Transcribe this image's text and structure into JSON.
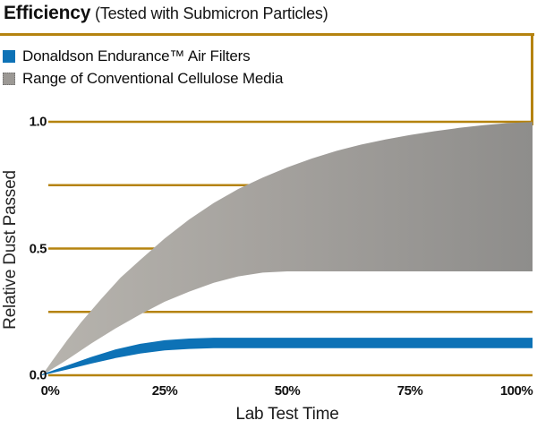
{
  "header": {
    "title_bold": "Efficiency",
    "title_rest": " (Tested with Submicron Particles)"
  },
  "colors": {
    "grid": "#b5830f",
    "rule": "#a97e0d",
    "blue": "#0d72b6",
    "gray_light": "#b7b4ae",
    "gray_mid": "#a5a29e",
    "gray_dark": "#8e8d8b",
    "text": "#111111"
  },
  "chart_data": {
    "type": "area",
    "title": "Efficiency (Tested with Submicron Particles)",
    "xlabel": "Lab Test Time",
    "ylabel": "Relative Dust Passed",
    "xlim": [
      0,
      100
    ],
    "ylim": [
      0,
      1.0
    ],
    "x_tick_labels": [
      "0%",
      "25%",
      "50%",
      "75%",
      "100%"
    ],
    "x_tick_values": [
      0,
      25,
      50,
      75,
      100
    ],
    "y_tick_labels": [
      "0.0",
      "0.5",
      "1.0"
    ],
    "y_tick_values": [
      0,
      0.5,
      1.0
    ],
    "gridlines_y": [
      0,
      0.25,
      0.5,
      0.75,
      1.0
    ],
    "grid_color": "#b5830f",
    "legend_position": "top-left",
    "series": [
      {
        "name": "Range of Conventional Cellulose Media",
        "band": true,
        "swatch_color": "#9c9995",
        "fill": "gray-gradient",
        "x": [
          0,
          2,
          5,
          8,
          12,
          16,
          20,
          25,
          30,
          35,
          40,
          45,
          50,
          55,
          60,
          65,
          70,
          75,
          80,
          85,
          90,
          95,
          100
        ],
        "y_high": [
          0,
          0.055,
          0.135,
          0.21,
          0.3,
          0.385,
          0.455,
          0.54,
          0.615,
          0.68,
          0.735,
          0.78,
          0.82,
          0.855,
          0.885,
          0.91,
          0.93,
          0.948,
          0.963,
          0.976,
          0.987,
          0.995,
          0.999
        ],
        "x_low": [
          0,
          5,
          10,
          15,
          20,
          25,
          30,
          35,
          40,
          45,
          50,
          100
        ],
        "y_low": [
          0,
          0.06,
          0.125,
          0.185,
          0.24,
          0.29,
          0.33,
          0.365,
          0.39,
          0.405,
          0.41,
          0.41
        ]
      },
      {
        "name": "Donaldson Endurance™ Air Filters",
        "band": true,
        "swatch_color": "#0d72b6",
        "fill": "blue",
        "x": [
          0,
          5,
          10,
          15,
          20,
          25,
          30,
          35,
          100
        ],
        "y_high": [
          0.004,
          0.038,
          0.072,
          0.102,
          0.124,
          0.138,
          0.145,
          0.148,
          0.148
        ],
        "x_low": [
          0,
          5,
          10,
          15,
          20,
          25,
          30,
          35,
          100
        ],
        "y_low": [
          0,
          0.022,
          0.046,
          0.068,
          0.086,
          0.098,
          0.104,
          0.107,
          0.107
        ]
      }
    ]
  }
}
